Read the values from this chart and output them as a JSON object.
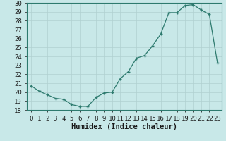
{
  "x": [
    0,
    1,
    2,
    3,
    4,
    5,
    6,
    7,
    8,
    9,
    10,
    11,
    12,
    13,
    14,
    15,
    16,
    17,
    18,
    19,
    20,
    21,
    22,
    23
  ],
  "y": [
    20.7,
    20.1,
    19.7,
    19.3,
    19.2,
    18.6,
    18.4,
    18.4,
    19.4,
    19.9,
    20.0,
    21.5,
    22.3,
    23.8,
    24.1,
    25.2,
    26.5,
    28.9,
    28.9,
    29.7,
    29.8,
    29.2,
    28.7,
    23.3
  ],
  "line_color": "#2d7a6e",
  "marker": "P",
  "marker_size": 2.5,
  "bg_color": "#c8e8e8",
  "grid_color": "#b0d0d0",
  "xlabel": "Humidex (Indice chaleur)",
  "ylim": [
    18,
    30
  ],
  "xlim": [
    -0.5,
    23.5
  ],
  "yticks": [
    18,
    19,
    20,
    21,
    22,
    23,
    24,
    25,
    26,
    27,
    28,
    29,
    30
  ],
  "tick_fontsize": 6.5,
  "xlabel_fontsize": 7.5,
  "label_color": "#1a1a1a"
}
